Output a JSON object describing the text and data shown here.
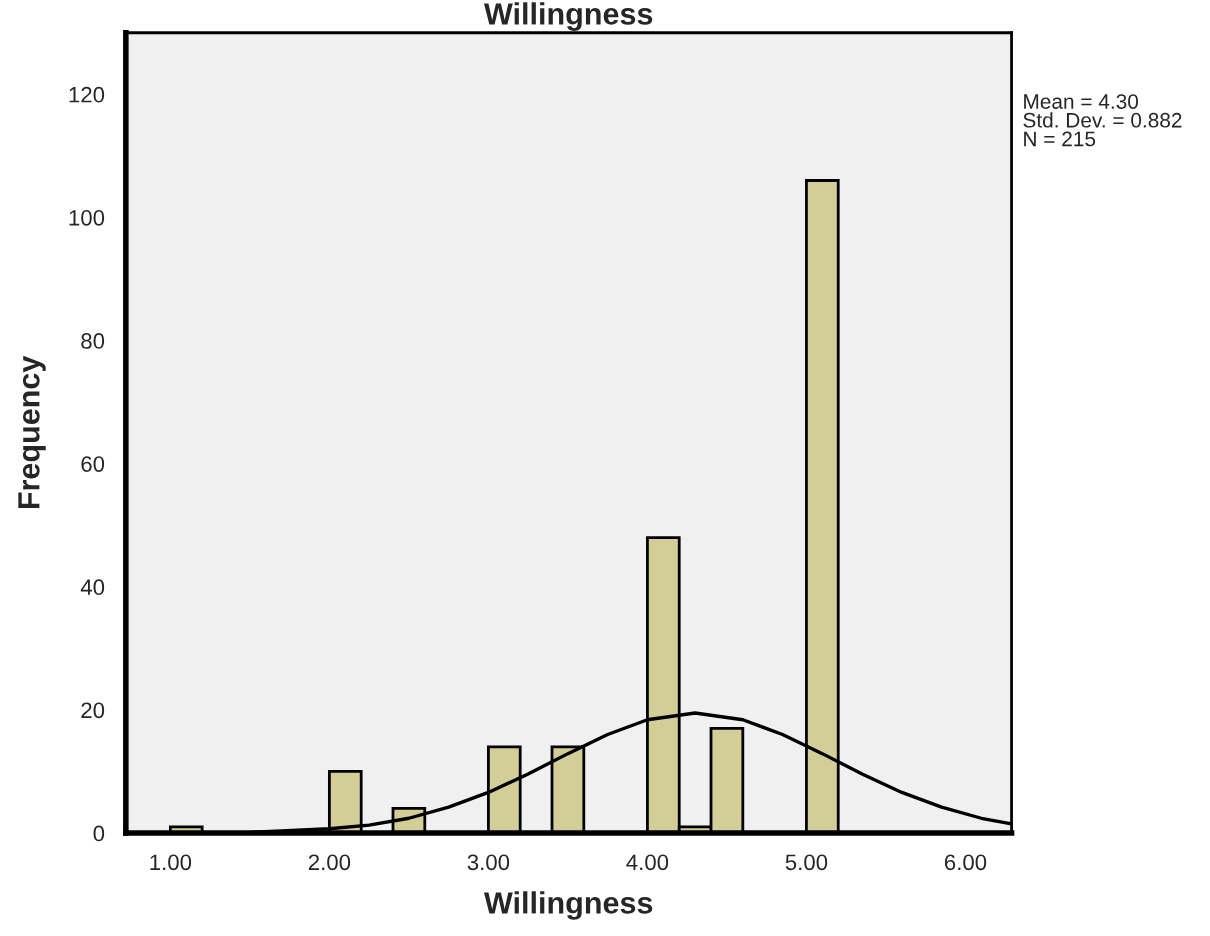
{
  "chart_data": {
    "type": "histogram",
    "title": "Willingness",
    "xlabel": "Willingness",
    "ylabel": "Frequency",
    "bins": [
      1.0,
      1.2,
      1.4,
      1.6,
      1.8,
      2.0,
      2.2,
      2.4,
      2.6,
      2.8,
      3.0,
      3.2,
      3.4,
      3.6,
      3.8,
      4.0,
      4.2,
      4.4,
      4.6,
      4.8,
      5.0,
      5.2
    ],
    "values": [
      1,
      0,
      0,
      0,
      0,
      10,
      0,
      4,
      0,
      0,
      14,
      0,
      14,
      0,
      0,
      48,
      1,
      17,
      0,
      0,
      106
    ],
    "color": "#d3ce97",
    "series": [
      {
        "type": "line",
        "color": "#000000",
        "x": [
          0.72,
          1.0,
          1.5,
          2.0,
          2.25,
          2.5,
          2.75,
          3.0,
          3.25,
          3.5,
          3.75,
          4.0,
          4.3,
          4.6,
          4.85,
          5.1,
          5.35,
          5.6,
          5.85,
          6.1,
          6.29
        ],
        "values": [
          0.0,
          0.0,
          0.1,
          0.7,
          1.3,
          2.4,
          4.2,
          6.6,
          9.6,
          12.9,
          16.0,
          18.4,
          19.5,
          18.4,
          16.0,
          12.9,
          9.6,
          6.6,
          4.2,
          2.4,
          1.5
        ]
      }
    ],
    "xlim": [
      0.72,
      6.29
    ],
    "ylim": [
      0,
      130
    ],
    "xticks": [
      {
        "value": 1,
        "label": "1.00"
      },
      {
        "value": 2,
        "label": "2.00"
      },
      {
        "value": 3,
        "label": "3.00"
      },
      {
        "value": 4,
        "label": "4.00"
      },
      {
        "value": 5,
        "label": "5.00"
      },
      {
        "value": 6,
        "label": "6.00"
      }
    ],
    "yticks": [
      0,
      20,
      40,
      60,
      80,
      100,
      120
    ],
    "grid": false,
    "legend": false,
    "annotations": [
      "Mean = 4.30",
      "Std. Dev. = 0.882",
      "N = 215"
    ]
  }
}
